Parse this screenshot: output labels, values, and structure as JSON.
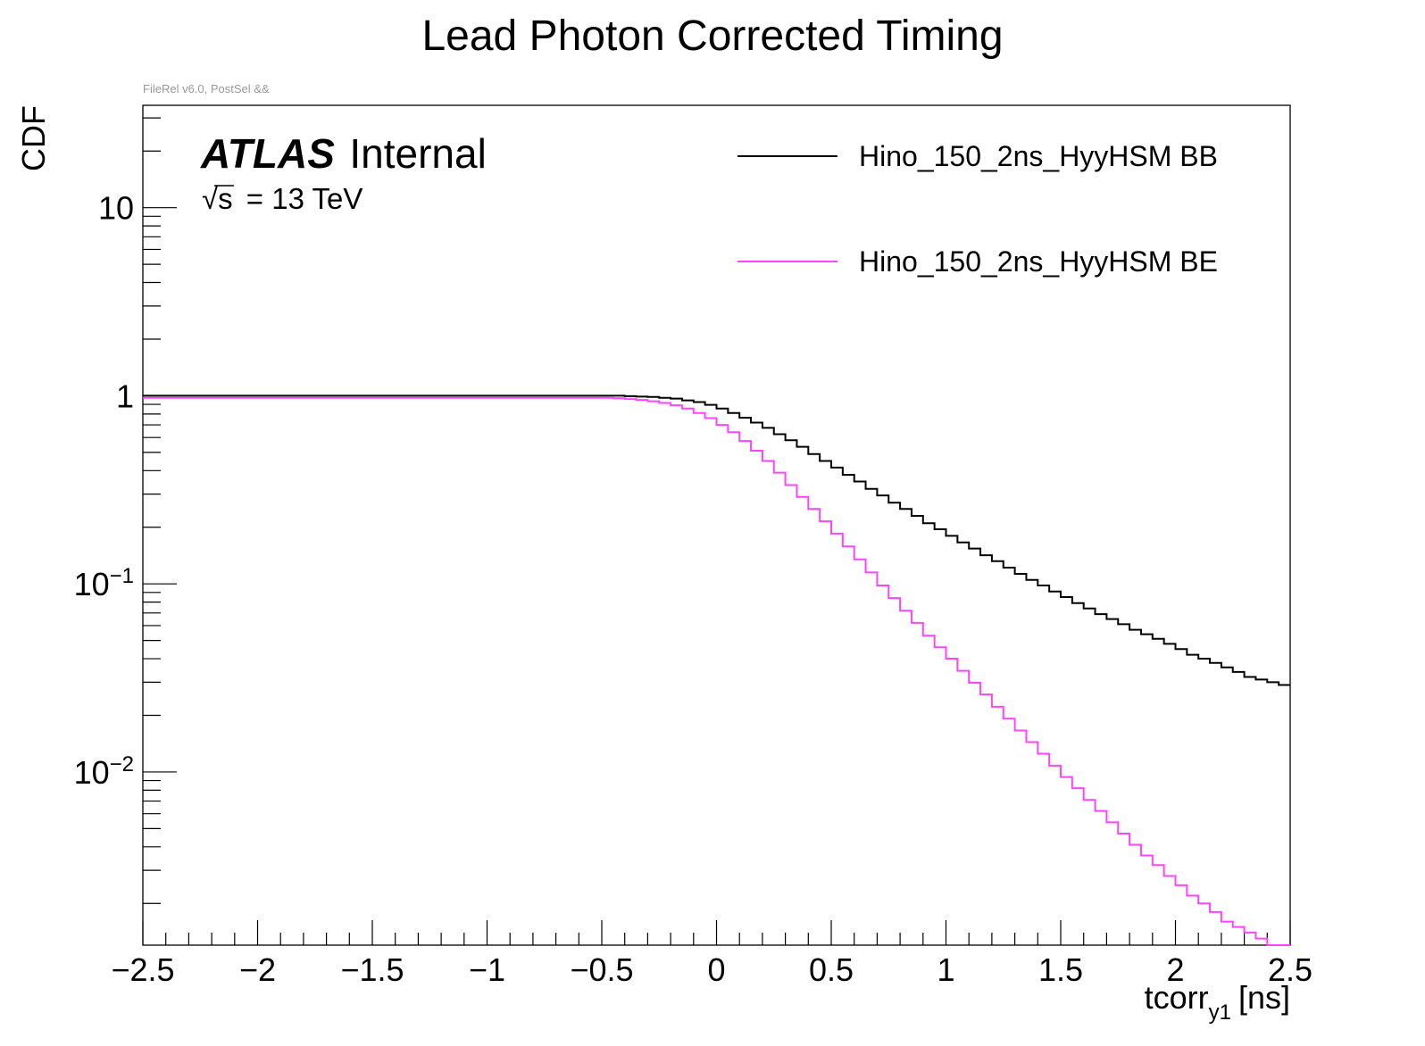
{
  "chart_data": {
    "type": "line",
    "title": "Lead Photon Corrected Timing",
    "annotation": "FileRel v6.0, PostSel &&",
    "atlas_label": {
      "bold": "ATLAS",
      "rest": "Internal"
    },
    "energy_label": {
      "sqrt_sym": "√",
      "s": "s",
      "rest": "= 13 TeV"
    },
    "xlabel": {
      "main": "tcorr",
      "sub": "y1",
      "unit": "[ns]"
    },
    "ylabel": "CDF",
    "xlim": [
      -2.5,
      2.5
    ],
    "ylim": [
      0.0012,
      35
    ],
    "yscale": "log",
    "x_ticks": [
      -2.5,
      -2,
      -1.5,
      -1,
      -0.5,
      0,
      0.5,
      1,
      1.5,
      2,
      2.5
    ],
    "x_tick_labels": [
      "−2.5",
      "−2",
      "−1.5",
      "−1",
      "−0.5",
      "0",
      "0.5",
      "1",
      "1.5",
      "2",
      "2.5"
    ],
    "y_ticks": [
      {
        "value": 10,
        "base": "10",
        "exp": ""
      },
      {
        "value": 1,
        "base": "1",
        "exp": ""
      },
      {
        "value": 0.1,
        "base": "10",
        "exp": "−1"
      },
      {
        "value": 0.01,
        "base": "10",
        "exp": "−2"
      }
    ],
    "series": [
      {
        "name": "Hino_150_2ns_HyyHSM BB",
        "color": "#000000",
        "x_start": -0.5,
        "bin_width": 0.05,
        "flat_value": 1.0,
        "values": [
          1.0,
          1.0,
          0.995,
          0.99,
          0.985,
          0.975,
          0.965,
          0.945,
          0.925,
          0.895,
          0.855,
          0.81,
          0.765,
          0.72,
          0.675,
          0.625,
          0.58,
          0.535,
          0.49,
          0.45,
          0.415,
          0.38,
          0.35,
          0.32,
          0.295,
          0.27,
          0.25,
          0.23,
          0.21,
          0.195,
          0.18,
          0.166,
          0.154,
          0.142,
          0.132,
          0.122,
          0.113,
          0.105,
          0.098,
          0.091,
          0.085,
          0.079,
          0.074,
          0.069,
          0.065,
          0.061,
          0.057,
          0.054,
          0.051,
          0.048,
          0.045,
          0.042,
          0.04,
          0.038,
          0.036,
          0.034,
          0.032,
          0.031,
          0.03,
          0.029
        ]
      },
      {
        "name": "Hino_150_2ns_HyyHSM BE",
        "color": "#ff44ff",
        "x_start": -0.5,
        "bin_width": 0.05,
        "flat_value": 0.975,
        "values": [
          0.975,
          0.97,
          0.96,
          0.95,
          0.935,
          0.915,
          0.89,
          0.855,
          0.81,
          0.76,
          0.7,
          0.64,
          0.575,
          0.51,
          0.45,
          0.39,
          0.335,
          0.29,
          0.25,
          0.215,
          0.185,
          0.158,
          0.135,
          0.115,
          0.098,
          0.084,
          0.072,
          0.062,
          0.053,
          0.046,
          0.04,
          0.0345,
          0.0298,
          0.0258,
          0.0222,
          0.0192,
          0.0166,
          0.0144,
          0.0125,
          0.0108,
          0.0094,
          0.0082,
          0.0071,
          0.0062,
          0.0054,
          0.0047,
          0.0041,
          0.0036,
          0.0032,
          0.0028,
          0.0025,
          0.0022,
          0.002,
          0.0018,
          0.0016,
          0.0015,
          0.0014,
          0.0013,
          0.0012,
          0.0012
        ]
      }
    ],
    "legend": [
      {
        "label": "Hino_150_2ns_HyyHSM BB",
        "color": "#000000"
      },
      {
        "label": "Hino_150_2ns_HyyHSM BE",
        "color": "#ff44ff"
      }
    ]
  }
}
